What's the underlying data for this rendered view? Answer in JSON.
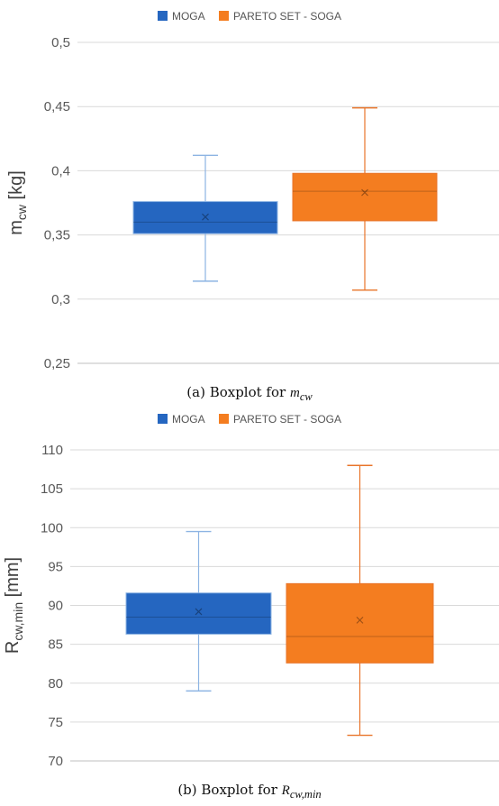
{
  "chart_data": [
    {
      "type": "boxplot",
      "caption_prefix": "(a) Boxplot for ",
      "caption_var": "m",
      "caption_sub": "cw",
      "ylabel_main": "m",
      "ylabel_sub": "cw",
      "ylabel_unit": " [kg]",
      "ylim": [
        0.25,
        0.5
      ],
      "yticks": [
        0.25,
        0.3,
        0.35,
        0.4,
        0.45,
        0.5
      ],
      "ytick_labels": [
        "0,25",
        "0,3",
        "0,35",
        "0,4",
        "0,45",
        "0,5"
      ],
      "legend_position": "top-center",
      "grid": true,
      "series": [
        {
          "name": "MOGA",
          "color": "#2566c0",
          "whisker_color": "#8db4e3",
          "min": 0.314,
          "q1": 0.351,
          "median": 0.36,
          "q3": 0.376,
          "max": 0.412,
          "mean": 0.364
        },
        {
          "name": "PARETO SET - SOGA",
          "color": "#f47d20",
          "whisker_color": "#e8742a",
          "min": 0.307,
          "q1": 0.361,
          "median": 0.384,
          "q3": 0.398,
          "max": 0.449,
          "mean": 0.383
        }
      ]
    },
    {
      "type": "boxplot",
      "caption_prefix": "(b) Boxplot for ",
      "caption_var": "R",
      "caption_sub": "cw,min",
      "ylabel_main": "R",
      "ylabel_sub": "cw,min",
      "ylabel_unit": " [mm]",
      "ylim": [
        70,
        110
      ],
      "yticks": [
        70,
        75,
        80,
        85,
        90,
        95,
        100,
        105,
        110
      ],
      "ytick_labels": [
        "70",
        "75",
        "80",
        "85",
        "90",
        "95",
        "100",
        "105",
        "110"
      ],
      "legend_position": "top-center",
      "grid": true,
      "series": [
        {
          "name": "MOGA",
          "color": "#2566c0",
          "whisker_color": "#8db4e3",
          "min": 79,
          "q1": 86.3,
          "median": 88.5,
          "q3": 91.6,
          "max": 99.5,
          "mean": 89.2
        },
        {
          "name": "PARETO SET - SOGA",
          "color": "#f47d20",
          "whisker_color": "#e8742a",
          "min": 73.3,
          "q1": 82.6,
          "median": 86.0,
          "q3": 92.8,
          "max": 108,
          "mean": 88.1
        }
      ]
    }
  ]
}
